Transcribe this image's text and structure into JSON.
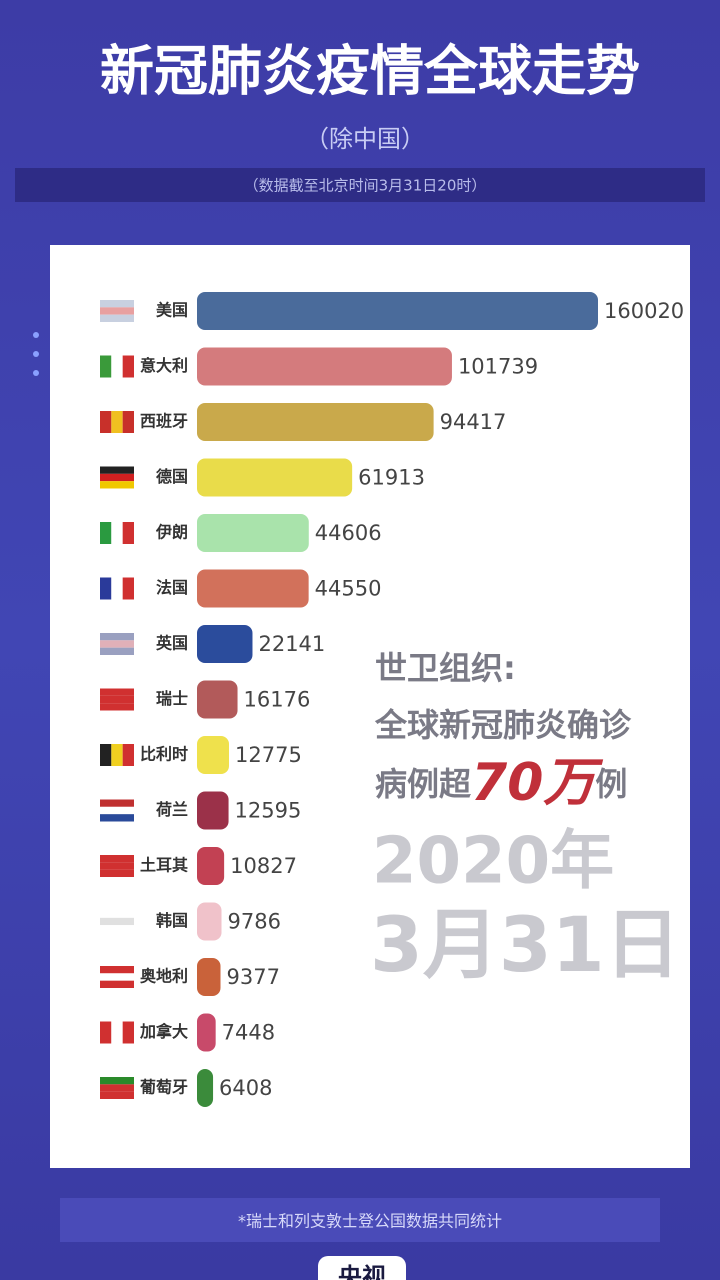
{
  "chart_data": {
    "type": "bar",
    "orientation": "horizontal",
    "title": "新冠肺炎疫情全球走势",
    "subtitle": "（除中国）",
    "note": "（数据截至北京时间3月31日20时）",
    "categories": [
      "美国",
      "意大利",
      "西班牙",
      "德国",
      "伊朗",
      "法国",
      "英国",
      "瑞士",
      "比利时",
      "荷兰",
      "土耳其",
      "韩国",
      "奥地利",
      "加拿大",
      "葡萄牙"
    ],
    "values": [
      160020,
      101739,
      94417,
      61913,
      44606,
      44550,
      22141,
      16176,
      12775,
      12595,
      10827,
      9786,
      9377,
      7448,
      6408
    ],
    "colors": [
      "#4a6b9b",
      "#d47b7d",
      "#c9a94b",
      "#e9dc4a",
      "#a9e3ab",
      "#d2715b",
      "#2b4c9c",
      "#b25a5a",
      "#efe14c",
      "#9b3149",
      "#c24153",
      "#f0c2ca",
      "#c9623a",
      "#c84a6a",
      "#3b8b3b"
    ],
    "annotation": {
      "source": "世卫组织:",
      "line": "全球新冠肺炎确诊",
      "pre": "病例超",
      "highlight": "70万",
      "post": "例"
    },
    "date_year": "2020年",
    "date_day": "3月31日",
    "footnote": "*瑞士和列支敦士登公国数据共同统计",
    "logo": "央视"
  }
}
